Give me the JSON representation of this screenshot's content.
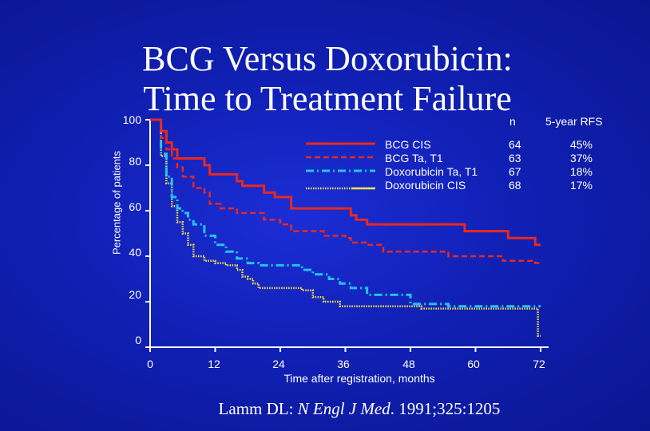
{
  "slide": {
    "title_line1": "BCG Versus Doxorubicin:",
    "title_line2": "Time to Treatment Failure",
    "citation_author": "Lamm DL: ",
    "citation_journal": "N Engl J Med",
    "citation_rest": ". 1991;325:1205"
  },
  "legend": {
    "n_header": "n",
    "rfs_header": "5-year RFS",
    "rows": [
      {
        "name": "BCG CIS",
        "n": "64",
        "rfs": "45%"
      },
      {
        "name": "BCG Ta, T1",
        "n": "63",
        "rfs": "37%"
      },
      {
        "name": "Doxorubicin Ta, T1",
        "n": "67",
        "rfs": "18%"
      },
      {
        "name": "Doxorubicin CIS",
        "n": "68",
        "rfs": "17%"
      }
    ]
  },
  "colors": {
    "background": "#1424c8",
    "bcg_cis": "#e8281e",
    "bcg_ta_t1": "#e8281e",
    "doxo_ta_t1": "#22c4ec",
    "doxo_cis": "#f2e04a",
    "axis": "#ffffff"
  },
  "chart_data": {
    "type": "line",
    "title": "BCG Versus Doxorubicin: Time to Treatment Failure",
    "xlabel": "Time after registration, months",
    "ylabel": "Percentage of patients",
    "xlim": [
      0,
      72
    ],
    "ylim": [
      0,
      100
    ],
    "x_ticks": [
      "0",
      "12",
      "24",
      "36",
      "48",
      "60",
      "72"
    ],
    "y_ticks": [
      "0",
      "20",
      "40",
      "60",
      "80",
      "100"
    ],
    "grid": false,
    "legend_position": "top-right",
    "series": [
      {
        "name": "BCG CIS",
        "style": "solid",
        "x": [
          0,
          1.5,
          2,
          3,
          4,
          5,
          8,
          10,
          11,
          14,
          16,
          17,
          19,
          21,
          23,
          25,
          26,
          31,
          35,
          37,
          38,
          40,
          50,
          57,
          58,
          64,
          66,
          70,
          71,
          72
        ],
        "y": [
          100,
          100,
          95,
          90,
          87,
          83,
          83,
          80,
          76,
          76,
          73,
          71,
          71,
          68,
          66,
          66,
          61,
          61,
          61,
          58,
          56,
          54,
          54,
          54,
          51,
          51,
          48,
          48,
          45,
          45
        ]
      },
      {
        "name": "BCG Ta, T1",
        "style": "dashed",
        "x": [
          0,
          1.5,
          2,
          3,
          4,
          5,
          6,
          8,
          10,
          11,
          13,
          16,
          21,
          24,
          26,
          30,
          32,
          36,
          37,
          40,
          43,
          47,
          52,
          55,
          58,
          62,
          65,
          68,
          71,
          72
        ],
        "y": [
          100,
          100,
          92,
          87,
          83,
          79,
          75,
          70,
          68,
          63,
          61,
          59,
          56,
          54,
          51,
          51,
          49,
          48,
          46,
          45,
          42,
          42,
          42,
          40,
          40,
          40,
          38,
          38,
          37,
          37
        ]
      },
      {
        "name": "Doxorubicin Ta, T1",
        "style": "dashdot",
        "x": [
          0,
          1.5,
          2,
          3,
          4,
          5,
          6,
          7,
          8,
          10,
          12,
          14,
          16,
          18,
          20,
          22,
          25,
          28,
          30,
          33,
          35,
          37,
          40,
          44,
          48,
          55,
          62,
          72
        ],
        "y": [
          100,
          100,
          85,
          75,
          66,
          61,
          59,
          56,
          54,
          49,
          45,
          42,
          39,
          37,
          36,
          36,
          36,
          34,
          32,
          30,
          28,
          26,
          23,
          23,
          19,
          18,
          18,
          18
        ]
      },
      {
        "name": "Doxorubicin CIS",
        "style": "dotted",
        "x": [
          0,
          1.5,
          2,
          3,
          4,
          5,
          6,
          7,
          8,
          10,
          12,
          14,
          16,
          17,
          18,
          19,
          20,
          22,
          24,
          26,
          28,
          30,
          32,
          35,
          40,
          45,
          50,
          55,
          60,
          65,
          70,
          71.5,
          72
        ],
        "y": [
          100,
          100,
          84,
          72,
          62,
          55,
          50,
          45,
          40,
          38,
          37,
          36,
          34,
          31,
          30,
          28,
          26,
          26,
          26,
          26,
          25,
          22,
          20,
          18,
          18,
          18,
          17,
          17,
          17,
          17,
          17,
          5,
          5
        ]
      }
    ]
  }
}
